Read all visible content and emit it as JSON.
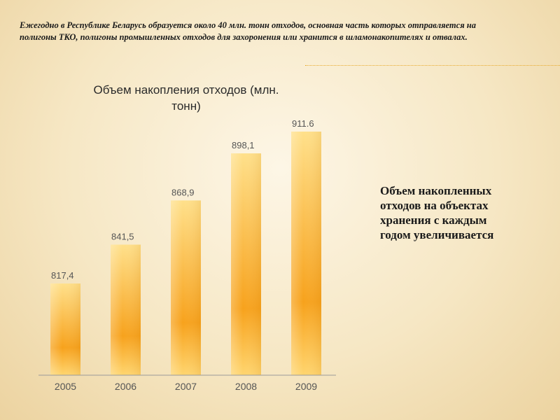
{
  "header": {
    "lines": [
      "Ежегодно в Республике Беларусь образуется около 40 млн. тонн отходов, основная часть которых отправляется на",
      "полигоны ТКО, полигоны промышленных отходов   для захоронения или хранится в шламонакопителях и отвалах."
    ]
  },
  "side_note": {
    "lines": [
      "Объем накопленных",
      "отходов на объектах",
      "хранения с каждым",
      "годом увеличивается"
    ]
  },
  "colors": {
    "bar_top": "#ffe08a",
    "bar_mid": "#f7a21c",
    "bar_bottom": "#ffd56e",
    "label": "#555555",
    "title": "#2b2b2b",
    "divider": "#e8a92a"
  },
  "chart_data": {
    "type": "bar",
    "title_lines": [
      "Объем накопления отходов (млн.",
      "тонн)"
    ],
    "categories": [
      "2005",
      "2006",
      "2007",
      "2008",
      "2009"
    ],
    "values": [
      817.4,
      841.5,
      868.9,
      898.1,
      911.6
    ],
    "value_labels": [
      "817,4",
      "841,5",
      "868,9",
      "898,1",
      "911.6"
    ],
    "xlabel": "",
    "ylabel": "",
    "grid": false,
    "legend": "none"
  }
}
